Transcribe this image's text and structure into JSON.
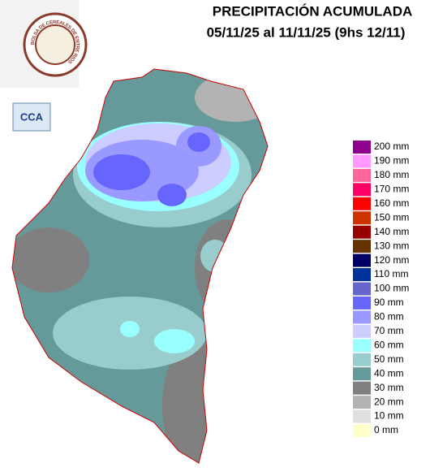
{
  "header": {
    "title": "PRECIPITACIÓN ACUMULADA",
    "subtitle": "05/11/25 al 11/11/25 (9hs 12/11)"
  },
  "logo": {
    "ring_text": "BOLSA DE CEREALES DE ENTRE RIOS",
    "badge": "CCA"
  },
  "legend": {
    "items": [
      {
        "label": "200 mm",
        "color": "#8e008e"
      },
      {
        "label": "190 mm",
        "color": "#ff99ff"
      },
      {
        "label": "180 mm",
        "color": "#ff6699"
      },
      {
        "label": "170 mm",
        "color": "#ff0066"
      },
      {
        "label": "160 mm",
        "color": "#ff0000"
      },
      {
        "label": "150 mm",
        "color": "#cc3300"
      },
      {
        "label": "140 mm",
        "color": "#990000"
      },
      {
        "label": "130 mm",
        "color": "#663300"
      },
      {
        "label": "120 mm",
        "color": "#000066"
      },
      {
        "label": "110 mm",
        "color": "#003399"
      },
      {
        "label": "100 mm",
        "color": "#6666cc"
      },
      {
        "label": "90 mm",
        "color": "#6666ff"
      },
      {
        "label": "80 mm",
        "color": "#9999ff"
      },
      {
        "label": "70 mm",
        "color": "#ccccff"
      },
      {
        "label": "60 mm",
        "color": "#99ffff"
      },
      {
        "label": "50 mm",
        "color": "#99cccc"
      },
      {
        "label": "40 mm",
        "color": "#669999"
      },
      {
        "label": "30 mm",
        "color": "#808080"
      },
      {
        "label": "20 mm",
        "color": "#b3b3b3"
      },
      {
        "label": "10 mm",
        "color": "#e0e0e0"
      },
      {
        "label": "0 mm",
        "color": "#ffffcc"
      }
    ]
  }
}
